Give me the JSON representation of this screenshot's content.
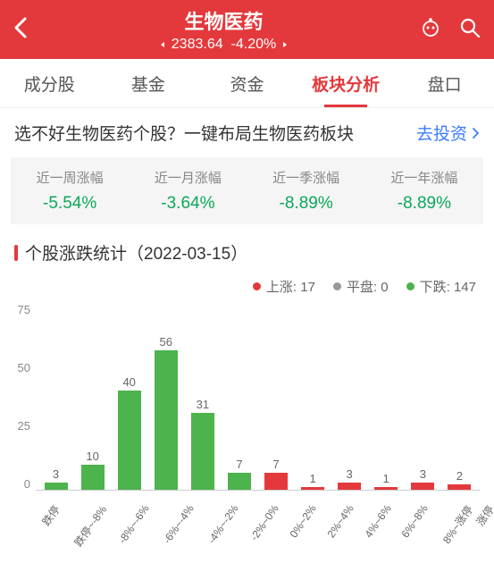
{
  "header": {
    "title": "生物医药",
    "value": "2383.64",
    "change": "-4.20%",
    "change_color": "#ffffff"
  },
  "tabs": [
    "成分股",
    "基金",
    "资金",
    "板块分析",
    "盘口"
  ],
  "active_tab": 3,
  "promo": {
    "text": "选不好生物医药个股？一键布局生物医药板块",
    "link": "去投资"
  },
  "stats": [
    {
      "label": "近一周涨幅",
      "value": "-5.54%",
      "color": "#0aa858"
    },
    {
      "label": "近一月涨幅",
      "value": "-3.64%",
      "color": "#0aa858"
    },
    {
      "label": "近一季涨幅",
      "value": "-8.89%",
      "color": "#0aa858"
    },
    {
      "label": "近一年涨幅",
      "value": "-8.89%",
      "color": "#0aa858"
    }
  ],
  "section": {
    "title": "个股涨跌统计（2022-03-15）"
  },
  "legend": {
    "up": {
      "label": "上涨",
      "count": 17,
      "color": "#e4393c"
    },
    "flat": {
      "label": "平盘",
      "count": 0,
      "color": "#999999"
    },
    "down": {
      "label": "下跌",
      "count": 147,
      "color": "#4db34d"
    }
  },
  "chart": {
    "type": "bar",
    "ylim": [
      0,
      75
    ],
    "yticks": [
      0,
      25,
      50,
      75
    ],
    "categories": [
      "跌停",
      "跌停~-8%",
      "-8%~-6%",
      "-6%~-4%",
      "-4%~-2%",
      "-2%~0%",
      "0%~2%",
      "2%~4%",
      "4%~6%",
      "6%~8%",
      "8%~涨停",
      "涨停"
    ],
    "values": [
      3,
      10,
      40,
      56,
      31,
      7,
      7,
      1,
      3,
      1,
      3,
      2
    ],
    "colors": [
      "#4db34d",
      "#4db34d",
      "#4db34d",
      "#4db34d",
      "#4db34d",
      "#4db34d",
      "#e4393c",
      "#e4393c",
      "#e4393c",
      "#e4393c",
      "#e4393c",
      "#e4393c"
    ],
    "bg": "#ffffff",
    "axis_color": "#cccccc",
    "val_fontsize": 13,
    "cat_fontsize": 12
  }
}
